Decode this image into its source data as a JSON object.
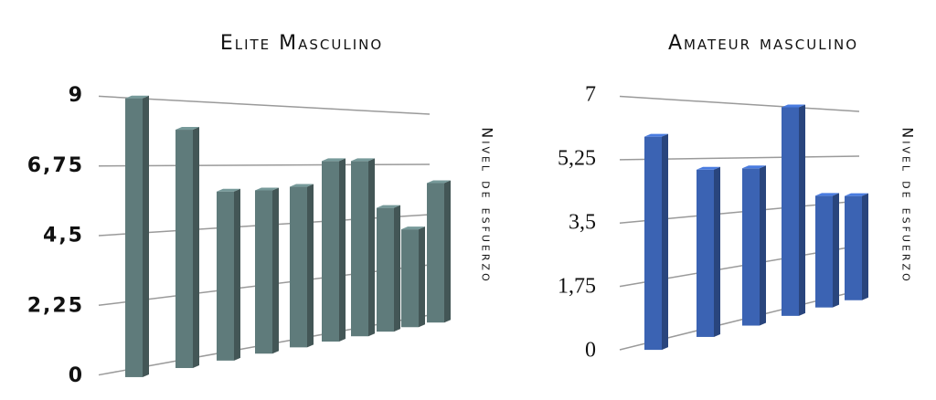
{
  "chart_data": [
    {
      "type": "bar3d",
      "title": "Elite Masculino",
      "y_label": "Nivel de esfuerzo",
      "values": [
        9,
        8,
        5.8,
        5.8,
        5.9,
        6.9,
        6.9,
        4.9,
        3.9,
        5.9
      ],
      "color": "#5f7b7b",
      "ylim": [
        0,
        9
      ],
      "yticks": [
        0,
        {
          "value": 2.25,
          "label": "2,25"
        },
        {
          "value": 4.5,
          "label": "4,5"
        },
        {
          "value": 6.75,
          "label": "6,75"
        },
        9
      ],
      "grid": true
    },
    {
      "type": "bar3d",
      "title": "Amateur masculino",
      "y_label": "Nivel de esfuerzo",
      "values": [
        5.9,
        4.9,
        4.9,
        7,
        3.8,
        3.7
      ],
      "color": "#3b63b3",
      "ylim": [
        0,
        7
      ],
      "yticks": [
        0,
        {
          "value": 1.75,
          "label": "1,75"
        },
        {
          "value": 3.5,
          "label": "3,5"
        },
        {
          "value": 5.25,
          "label": "5,25"
        },
        7
      ],
      "grid": true
    }
  ]
}
